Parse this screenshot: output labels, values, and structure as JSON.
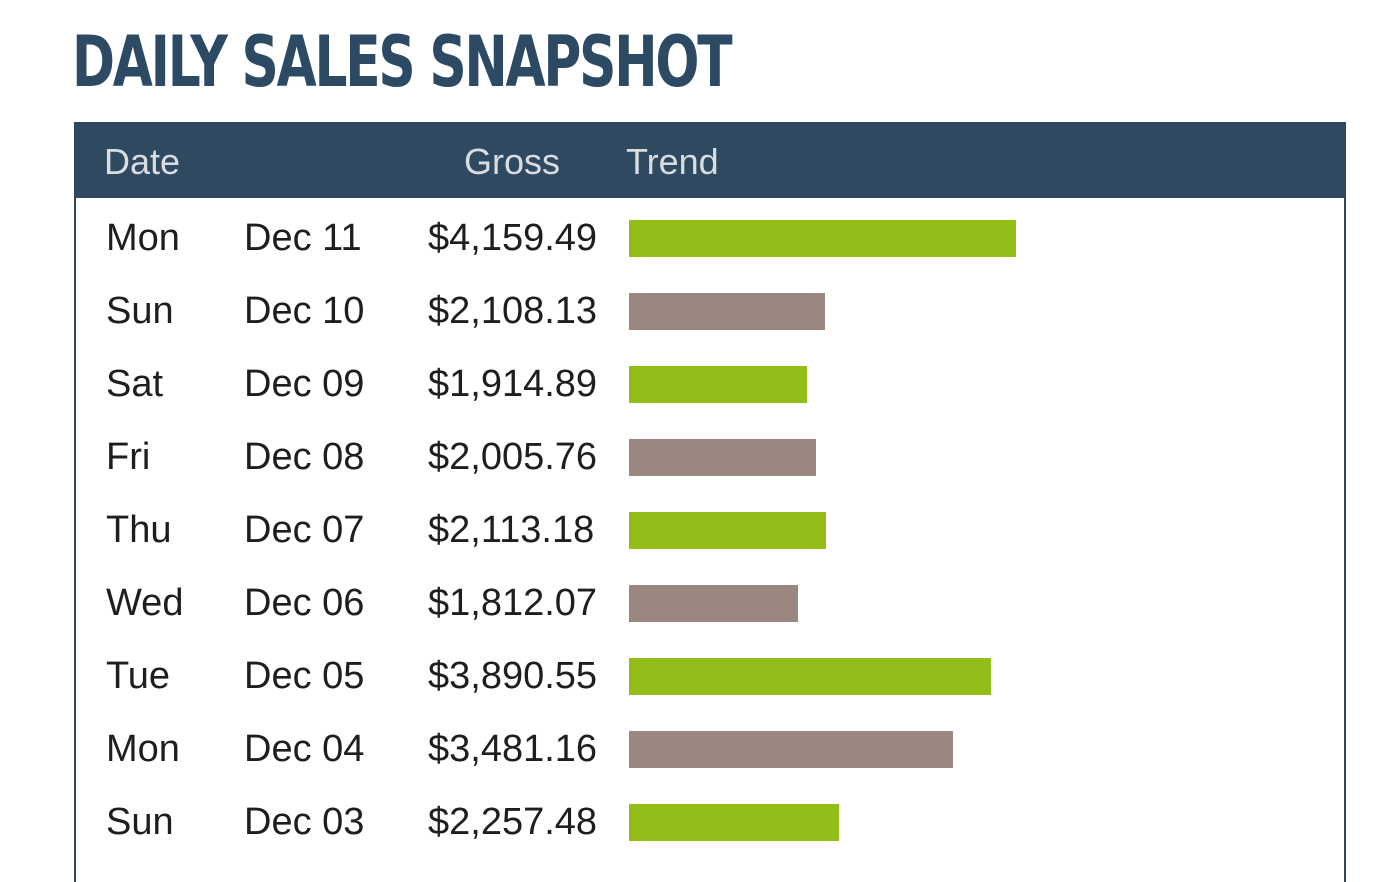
{
  "page": {
    "title": "DAILY SALES SNAPSHOT"
  },
  "table": {
    "headers": {
      "date": "Date",
      "gross": "Gross",
      "trend": "Trend"
    },
    "colors": {
      "header_bg": "#2f4a60",
      "bar_up": "#93bd19",
      "bar_down": "#9a8780"
    },
    "rows": [
      {
        "day": "Mon",
        "date": "Dec 11",
        "gross": "$4,159.49",
        "value": 4159.49,
        "trend": "up"
      },
      {
        "day": "Sun",
        "date": "Dec 10",
        "gross": "$2,108.13",
        "value": 2108.13,
        "trend": "down"
      },
      {
        "day": "Sat",
        "date": "Dec 09",
        "gross": "$1,914.89",
        "value": 1914.89,
        "trend": "up"
      },
      {
        "day": "Fri",
        "date": "Dec 08",
        "gross": "$2,005.76",
        "value": 2005.76,
        "trend": "down"
      },
      {
        "day": "Thu",
        "date": "Dec 07",
        "gross": "$2,113.18",
        "value": 2113.18,
        "trend": "up"
      },
      {
        "day": "Wed",
        "date": "Dec 06",
        "gross": "$1,812.07",
        "value": 1812.07,
        "trend": "down"
      },
      {
        "day": "Tue",
        "date": "Dec 05",
        "gross": "$3,890.55",
        "value": 3890.55,
        "trend": "up"
      },
      {
        "day": "Mon",
        "date": "Dec 04",
        "gross": "$3,481.16",
        "value": 3481.16,
        "trend": "down"
      },
      {
        "day": "Sun",
        "date": "Dec 03",
        "gross": "$2,257.48",
        "value": 2257.48,
        "trend": "up"
      }
    ]
  }
}
